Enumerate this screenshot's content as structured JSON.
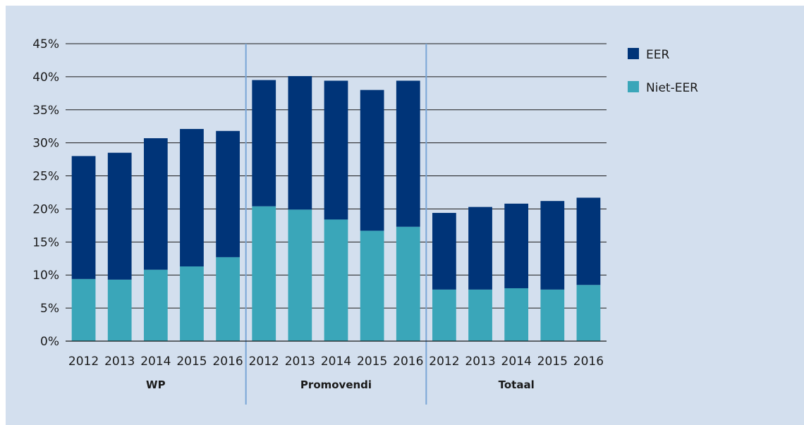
{
  "chart_data": {
    "type": "bar",
    "stacked": true,
    "title": "",
    "xlabel": "",
    "ylabel": "",
    "ylim": [
      0,
      45
    ],
    "y_ticks": [
      "0%",
      "5%",
      "10%",
      "15%",
      "20%",
      "25%",
      "30%",
      "35%",
      "40%",
      "45%"
    ],
    "grid": true,
    "legend_position": "top-right",
    "groups": [
      {
        "name": "WP",
        "categories": [
          "2012",
          "2013",
          "2014",
          "2015",
          "2016"
        ]
      },
      {
        "name": "Promovendi",
        "categories": [
          "2012",
          "2013",
          "2014",
          "2015",
          "2016"
        ]
      },
      {
        "name": "Totaal",
        "categories": [
          "2012",
          "2013",
          "2014",
          "2015",
          "2016"
        ]
      }
    ],
    "series": [
      {
        "name": "Niet-EER",
        "color": "#3aa6b9",
        "values": [
          9.4,
          9.3,
          10.8,
          11.3,
          12.7,
          20.4,
          19.9,
          18.4,
          16.7,
          17.3,
          7.8,
          7.8,
          8.0,
          7.8,
          8.5
        ]
      },
      {
        "name": "EER",
        "color": "#003478",
        "values": [
          18.6,
          19.2,
          19.9,
          20.8,
          19.1,
          19.1,
          20.2,
          21.0,
          21.3,
          22.1,
          11.6,
          12.5,
          12.8,
          13.4,
          13.2
        ]
      }
    ],
    "legend": [
      {
        "label": "EER",
        "color": "#003478"
      },
      {
        "label": "Niet-EER",
        "color": "#3aa6b9"
      }
    ],
    "separator_color": "#7aa6d6"
  }
}
